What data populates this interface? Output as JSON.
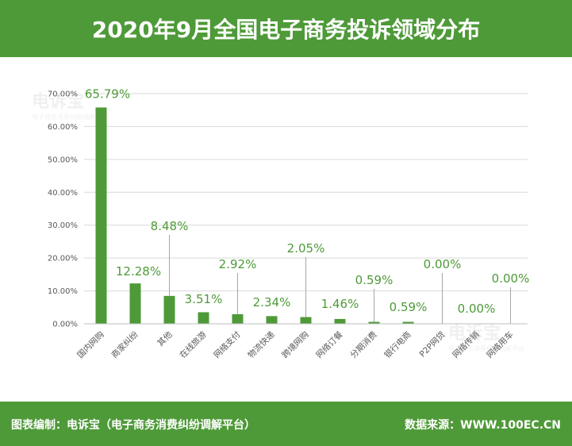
{
  "header": {
    "title": "2020年9月全国电子商务投诉领域分布"
  },
  "watermark": {
    "name": "电诉宝",
    "sub": "电子商务消费纠纷调解平台"
  },
  "footer": {
    "credit": "图表编制：电诉宝（电子商务消费纠纷调解平台）",
    "source": "数据来源：WWW.100EC.CN"
  },
  "colors": {
    "brand": "#4e9a38",
    "bar": "#4e9a38",
    "label": "#4e9a38",
    "grid": "#d9d9d9",
    "axis_text": "#595959"
  },
  "chart_data": {
    "type": "bar",
    "title": "2020年9月全国电子商务投诉领域分布",
    "categories": [
      "国内网购",
      "商家纠纷",
      "其他",
      "在线旅游",
      "网络支付",
      "物流快递",
      "跨境网购",
      "网络订餐",
      "分期消费",
      "银行电商",
      "P2P网贷",
      "网络传销",
      "网络用车"
    ],
    "values": [
      65.79,
      12.28,
      8.48,
      3.51,
      2.92,
      2.34,
      2.05,
      1.46,
      0.59,
      0.59,
      0.0,
      0.0,
      0.0
    ],
    "data_labels": [
      "65.79%",
      "12.28%",
      "8.48%",
      "3.51%",
      "2.92%",
      "2.34%",
      "2.05%",
      "1.46%",
      "0.59%",
      "0.59%",
      "0.00%",
      "0.00%",
      "0.00%"
    ],
    "yticks": [
      "0.00%",
      "10.00%",
      "20.00%",
      "30.00%",
      "40.00%",
      "50.00%",
      "60.00%",
      "70.00%"
    ],
    "ylim": [
      0,
      70
    ],
    "grid": true,
    "xlabel": "",
    "ylabel": ""
  }
}
